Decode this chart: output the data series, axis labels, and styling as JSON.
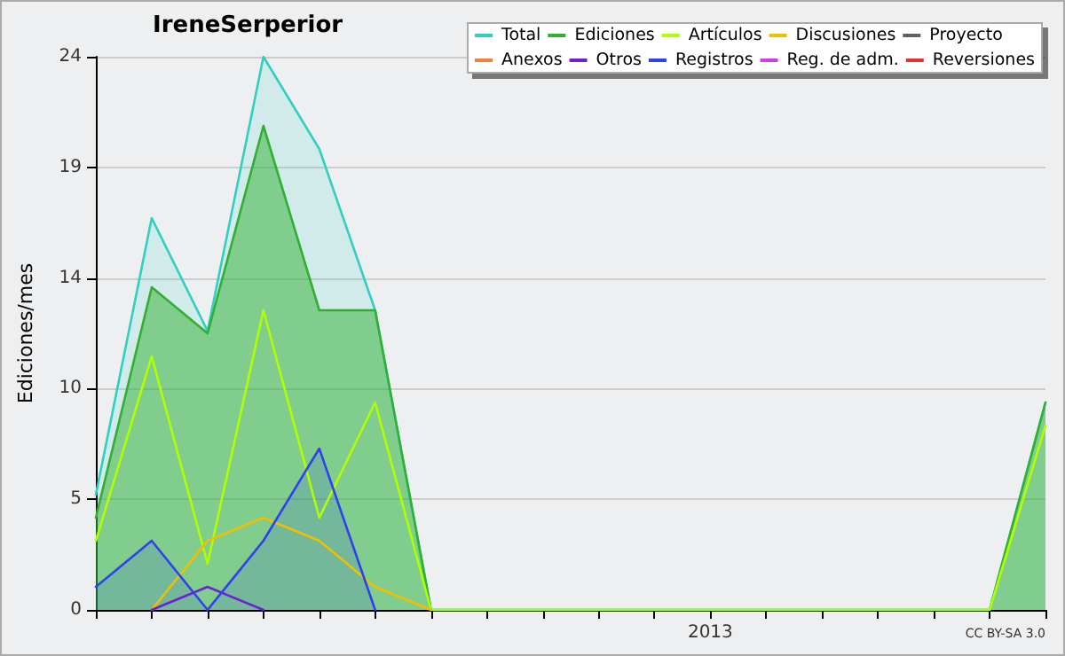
{
  "chart_data": {
    "type": "line",
    "title": "IreneSerperior",
    "ylabel": "Ediciones/mes",
    "categories": [
      null,
      null,
      null,
      null,
      null,
      null,
      null,
      null,
      null,
      null,
      null,
      "2013",
      null,
      null,
      null,
      null,
      null,
      null
    ],
    "ylim": [
      0,
      24
    ],
    "yticks": [
      0,
      {
        "value": 4.8,
        "label": "5"
      },
      {
        "value": 9.6,
        "label": "10"
      },
      {
        "value": 14.4,
        "label": "14"
      },
      {
        "value": 19.2,
        "label": "19"
      },
      24
    ],
    "grid": "y",
    "legend": "top right",
    "marker": "none",
    "line_style": "solid",
    "annotations": [
      "CC BY-SA 3.0"
    ],
    "series": [
      {
        "name": "Total",
        "type": "area",
        "color": "#30d0c0",
        "values": [
          5,
          17,
          12.1,
          24,
          20,
          13,
          0,
          0,
          0,
          0,
          0,
          0,
          0,
          0,
          0,
          0,
          0,
          9
        ]
      },
      {
        "name": "Ediciones",
        "type": "area",
        "color": "#30b030",
        "values": [
          4,
          14,
          12,
          21,
          13,
          13,
          0,
          0,
          0,
          0,
          0,
          0,
          0,
          0,
          0,
          0,
          0,
          9
        ]
      },
      {
        "name": "Artículos",
        "color": "#b0ff00",
        "values": [
          3,
          11,
          2,
          13,
          4,
          9,
          0,
          0,
          0,
          0,
          0,
          0,
          0,
          0,
          0,
          0,
          0,
          8
        ]
      },
      {
        "name": "Discusiones",
        "color": "#f0c000",
        "values": [
          null,
          0,
          3,
          4,
          3,
          1,
          0,
          null,
          null,
          null,
          null,
          null,
          null,
          null,
          null,
          null,
          null,
          null
        ]
      },
      {
        "name": "Proyecto",
        "color": "#606060",
        "values": [
          null,
          null,
          null,
          null,
          null,
          null,
          null,
          null,
          null,
          null,
          null,
          null,
          null,
          null,
          null,
          null,
          null,
          null
        ]
      },
      {
        "name": "Anexos",
        "color": "#f08040",
        "values": [
          null,
          null,
          null,
          null,
          null,
          null,
          null,
          null,
          null,
          null,
          null,
          null,
          null,
          null,
          null,
          null,
          null,
          null
        ]
      },
      {
        "name": "Otros",
        "color": "#7020d0",
        "values": [
          null,
          0,
          1,
          0,
          null,
          null,
          null,
          null,
          null,
          null,
          null,
          null,
          null,
          null,
          null,
          null,
          null,
          null
        ]
      },
      {
        "name": "Registros",
        "type": "area",
        "color": "#3040f0",
        "values": [
          1,
          3,
          0,
          3,
          7,
          0,
          null,
          null,
          null,
          null,
          null,
          null,
          null,
          null,
          null,
          null,
          null,
          null
        ]
      },
      {
        "name": "Reg. de adm.",
        "color": "#d040e0",
        "values": [
          null,
          null,
          null,
          null,
          null,
          null,
          null,
          null,
          null,
          null,
          null,
          null,
          null,
          null,
          null,
          null,
          null,
          null
        ]
      },
      {
        "name": "Reversiones",
        "color": "#e03030",
        "values": [
          null,
          null,
          null,
          null,
          null,
          null,
          null,
          null,
          null,
          null,
          null,
          null,
          null,
          null,
          null,
          null,
          null,
          null
        ]
      }
    ]
  }
}
